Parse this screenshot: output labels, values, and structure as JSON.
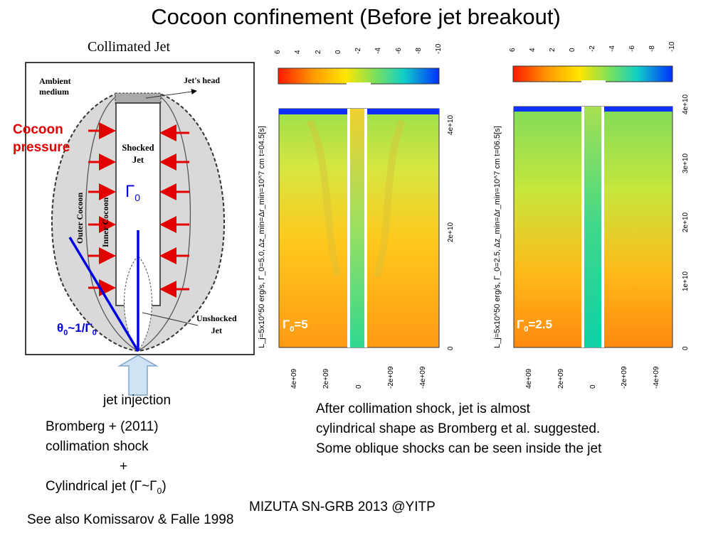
{
  "title": "Cocoon confinement (Before jet breakout)",
  "schematic": {
    "heading": "Collimated Jet",
    "ambient_medium_1": "Ambient",
    "ambient_medium_2": "medium",
    "jets_head": "Jet's head",
    "shocked_jet_1": "Shocked",
    "shocked_jet_2": "Jet",
    "outer_cocoon": "Outer Cocoon",
    "inner_cocoon": "Inner Cocoon",
    "unshocked_jet_1": "Unshocked",
    "unshocked_jet_2": "Jet",
    "cocoon_pressure_1": "Cocoon",
    "cocoon_pressure_2": "pressure",
    "gamma0_base": "Γ",
    "gamma0_sub": "0",
    "theta_base": "θ",
    "theta_sub": "0",
    "theta_mid": "~1/Γ",
    "theta_sub2": "0"
  },
  "jet_injection": "jet injection",
  "reference": {
    "line1": "Bromberg + (2011)",
    "line2": "collimation shock",
    "line3": "+",
    "line4_pre": "Cylindrical jet (Γ~Γ",
    "line4_sub": "0",
    "line4_post": ")"
  },
  "see_also": "See also Komissarov & Falle 1998",
  "footer": "MIZUTA SN-GRB 2013 @YITP",
  "note": {
    "line1": "After collimation shock, jet is almost",
    "line2": "cylindrical shape as Bromberg et al. suggested.",
    "line3": "Some oblique shocks can be seen inside the jet"
  },
  "colors": {
    "arrow_red": "#e30000",
    "line_blue": "#0000e0",
    "injection_arrow": "#cfe3f5",
    "cocoon_gray": "#d9d9d9"
  },
  "chart_data": [
    {
      "type": "heatmap",
      "panel_label_base": "Γ",
      "panel_label_sub": "0",
      "panel_label_value": "=5",
      "colorbar_ticks": [
        "6",
        "4",
        "2",
        "0",
        "-2",
        "-4",
        "-6",
        "-8",
        "-10"
      ],
      "colorbar_range": [
        6,
        -10
      ],
      "y_ticks": [
        "0",
        "2e+10",
        "4e+10"
      ],
      "x_ticks": [
        "4e+09",
        "2e+09",
        "0",
        "-2e+09",
        "-4e+09"
      ],
      "ylabel": "L_j=5x10^50 erg/s, Γ_0=5.0, Δz_min=Δr_min=10^7 cm t=04.5[s]"
    },
    {
      "type": "heatmap",
      "panel_label_base": "Γ",
      "panel_label_sub": "0",
      "panel_label_value": "=2.5",
      "colorbar_ticks": [
        "6",
        "4",
        "2",
        "0",
        "-2",
        "-4",
        "-6",
        "-8",
        "-10"
      ],
      "colorbar_range": [
        6,
        -10
      ],
      "y_ticks": [
        "0",
        "1e+10",
        "2e+10",
        "3e+10",
        "4e+10"
      ],
      "x_ticks": [
        "4e+09",
        "2e+09",
        "0",
        "-2e+09",
        "-4e+09"
      ],
      "ylabel": "L_j=5x10^50 erg/s, Γ_0=2.5, Δz_min=Δr_min=10^7 cm t=06.5[s]"
    }
  ]
}
